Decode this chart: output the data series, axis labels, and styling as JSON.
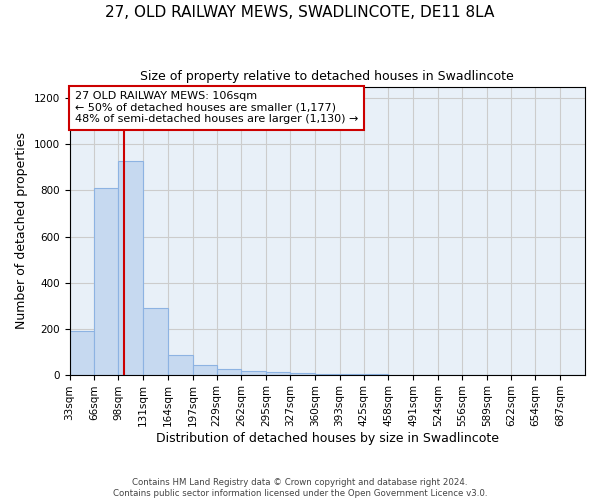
{
  "title": "27, OLD RAILWAY MEWS, SWADLINCOTE, DE11 8LA",
  "subtitle": "Size of property relative to detached houses in Swadlincote",
  "xlabel": "Distribution of detached houses by size in Swadlincote",
  "ylabel": "Number of detached properties",
  "footnote1": "Contains HM Land Registry data © Crown copyright and database right 2024.",
  "footnote2": "Contains public sector information licensed under the Open Government Licence v3.0.",
  "bin_edges": [
    33,
    66,
    98,
    131,
    164,
    197,
    229,
    262,
    295,
    327,
    360,
    393,
    425,
    458,
    491,
    524,
    556,
    589,
    622,
    654,
    687,
    720
  ],
  "bar_heights": [
    190,
    810,
    930,
    290,
    85,
    40,
    25,
    15,
    10,
    5,
    3,
    2,
    1,
    0,
    0,
    0,
    0,
    0,
    0,
    0,
    0
  ],
  "bar_color": "#c6d9f0",
  "bar_edge_color": "#8db3e2",
  "property_size": 106,
  "property_label": "27 OLD RAILWAY MEWS: 106sqm",
  "annotation_line1": "← 50% of detached houses are smaller (1,177)",
  "annotation_line2": "48% of semi-detached houses are larger (1,130) →",
  "vline_color": "#cc0000",
  "ylim": [
    0,
    1250
  ],
  "yticks": [
    0,
    200,
    400,
    600,
    800,
    1000,
    1200
  ],
  "plot_bg_color": "#e8f0f8",
  "background_color": "#ffffff",
  "grid_color": "#cccccc",
  "title_fontsize": 11,
  "subtitle_fontsize": 9,
  "tick_fontsize": 7.5,
  "label_fontsize": 9,
  "annot_fontsize": 8
}
